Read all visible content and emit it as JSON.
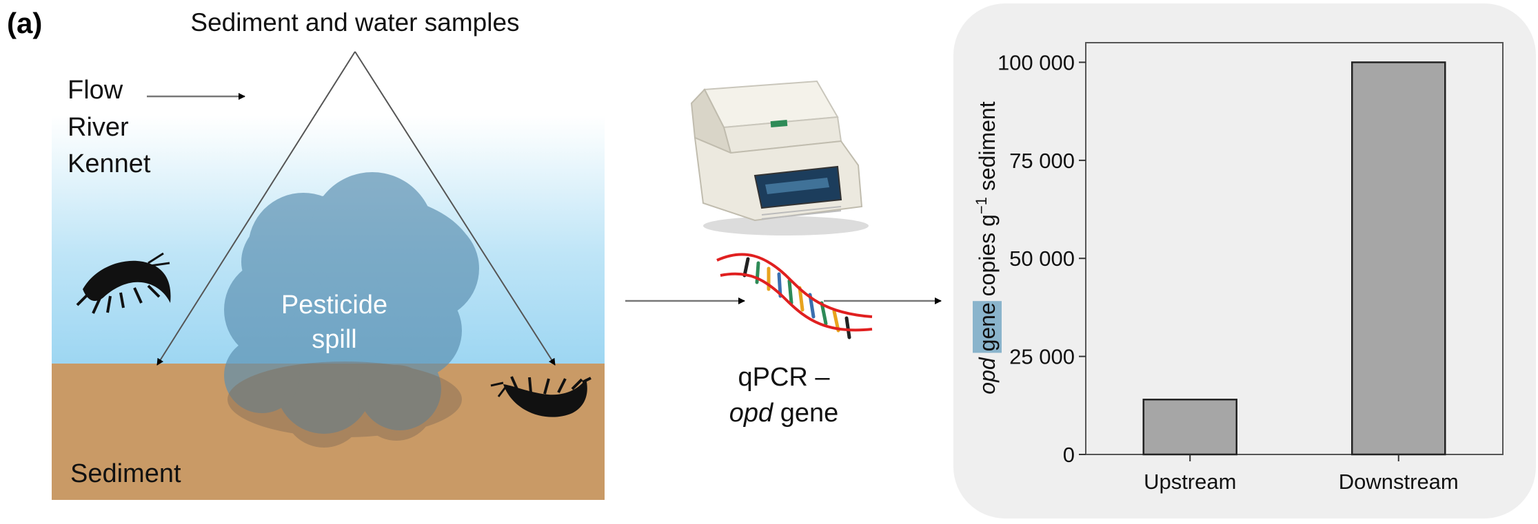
{
  "panel_label": "(a)",
  "samples_label": "Sediment and water samples",
  "flow_label": "Flow",
  "river_label_line1": "River",
  "river_label_line2": "Kennet",
  "spill_label_line1": "Pesticide",
  "spill_label_line2": "spill",
  "sediment_label": "Sediment",
  "qpcr_label_line1": "qPCR –",
  "qpcr_label_italic": "opd",
  "qpcr_label_rest": " gene",
  "colors": {
    "water_top": "#ffffff",
    "water_bottom": "#9dd6f2",
    "sediment": "#c99a66",
    "cloud": "#5b8fb0",
    "bar_fill": "#a6a6a6",
    "chart_panel": "#efefef",
    "highlight": "#8ab4cc"
  },
  "chart_data": {
    "type": "bar",
    "categories": [
      "Upstream",
      "Downstream"
    ],
    "values": [
      14000,
      100000
    ],
    "ylabel_italic": "opd",
    "ylabel_highlight": "gene",
    "ylabel_rest": " copies g",
    "ylabel_sup": "−1",
    "ylabel_end": " sediment",
    "ylim": [
      0,
      105000
    ],
    "yticks": [
      0,
      25000,
      50000,
      75000,
      100000
    ],
    "ytick_labels": [
      "0",
      "25 000",
      "50 000",
      "75 000",
      "100 000"
    ],
    "grid": false,
    "legend": "none"
  }
}
